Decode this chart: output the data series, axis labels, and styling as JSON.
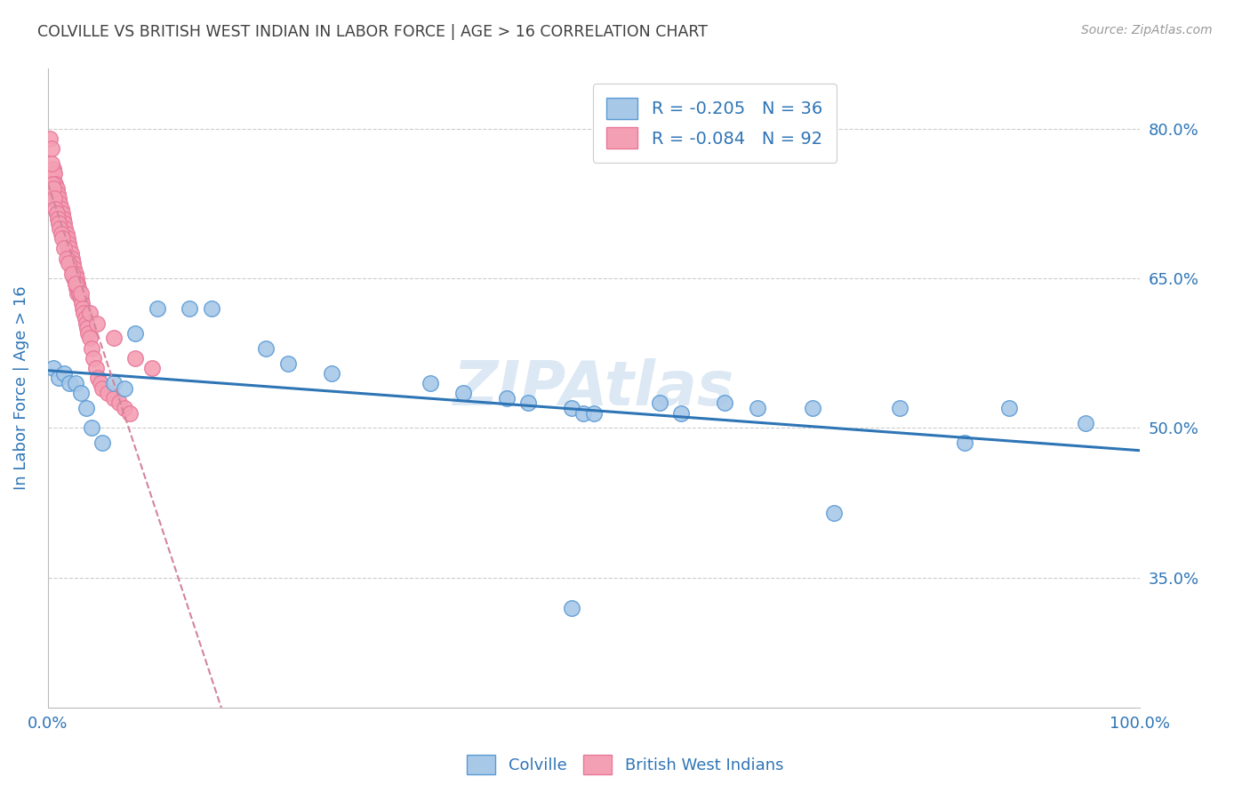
{
  "title": "COLVILLE VS BRITISH WEST INDIAN IN LABOR FORCE | AGE > 16 CORRELATION CHART",
  "source": "Source: ZipAtlas.com",
  "ylabel": "In Labor Force | Age > 16",
  "xlim": [
    0.0,
    1.0
  ],
  "ylim": [
    0.22,
    0.86
  ],
  "yticks": [
    0.35,
    0.5,
    0.65,
    0.8
  ],
  "ytick_labels": [
    "35.0%",
    "50.0%",
    "65.0%",
    "80.0%"
  ],
  "xticks": [
    0.0,
    0.1,
    0.2,
    0.3,
    0.4,
    0.5,
    0.6,
    0.7,
    0.8,
    0.9,
    1.0
  ],
  "xtick_labels": [
    "0.0%",
    "",
    "",
    "",
    "",
    "",
    "",
    "",
    "",
    "",
    "100.0%"
  ],
  "colville_color": "#a8c8e8",
  "bwi_color": "#f4a0b4",
  "colville_edge_color": "#5b9bd5",
  "bwi_edge_color": "#e8789a",
  "colville_line_color": "#2e75b6",
  "bwi_line_color": "#d4849a",
  "R_colville": -0.205,
  "N_colville": 36,
  "R_bwi": -0.084,
  "N_bwi": 92,
  "colville_x": [
    0.005,
    0.01,
    0.015,
    0.02,
    0.025,
    0.03,
    0.035,
    0.04,
    0.05,
    0.06,
    0.07,
    0.08,
    0.1,
    0.13,
    0.15,
    0.2,
    0.22,
    0.26,
    0.35,
    0.38,
    0.42,
    0.44,
    0.48,
    0.49,
    0.56,
    0.58,
    0.62,
    0.65,
    0.7,
    0.72,
    0.78,
    0.84,
    0.88,
    0.95,
    0.48,
    0.5
  ],
  "colville_y": [
    0.56,
    0.55,
    0.555,
    0.545,
    0.545,
    0.535,
    0.52,
    0.5,
    0.485,
    0.545,
    0.54,
    0.595,
    0.62,
    0.62,
    0.62,
    0.58,
    0.565,
    0.555,
    0.545,
    0.535,
    0.53,
    0.525,
    0.52,
    0.515,
    0.525,
    0.515,
    0.525,
    0.52,
    0.52,
    0.415,
    0.52,
    0.485,
    0.52,
    0.505,
    0.32,
    0.515
  ],
  "bwi_x": [
    0.002,
    0.003,
    0.004,
    0.004,
    0.005,
    0.005,
    0.006,
    0.006,
    0.007,
    0.007,
    0.008,
    0.008,
    0.009,
    0.009,
    0.01,
    0.01,
    0.011,
    0.011,
    0.012,
    0.012,
    0.013,
    0.013,
    0.014,
    0.014,
    0.015,
    0.015,
    0.016,
    0.016,
    0.017,
    0.017,
    0.018,
    0.018,
    0.019,
    0.019,
    0.02,
    0.02,
    0.021,
    0.021,
    0.022,
    0.022,
    0.023,
    0.023,
    0.024,
    0.024,
    0.025,
    0.025,
    0.026,
    0.026,
    0.027,
    0.027,
    0.028,
    0.029,
    0.03,
    0.031,
    0.032,
    0.033,
    0.034,
    0.035,
    0.036,
    0.037,
    0.038,
    0.04,
    0.042,
    0.044,
    0.046,
    0.048,
    0.05,
    0.055,
    0.06,
    0.065,
    0.07,
    0.075,
    0.003,
    0.004,
    0.005,
    0.006,
    0.007,
    0.008,
    0.009,
    0.01,
    0.011,
    0.012,
    0.013,
    0.015,
    0.017,
    0.019,
    0.022,
    0.025,
    0.03,
    0.038,
    0.045,
    0.06,
    0.08,
    0.095
  ],
  "bwi_y": [
    0.79,
    0.78,
    0.76,
    0.755,
    0.76,
    0.75,
    0.755,
    0.745,
    0.745,
    0.735,
    0.74,
    0.73,
    0.735,
    0.725,
    0.73,
    0.72,
    0.725,
    0.715,
    0.72,
    0.71,
    0.715,
    0.705,
    0.71,
    0.7,
    0.705,
    0.695,
    0.7,
    0.69,
    0.695,
    0.685,
    0.69,
    0.68,
    0.685,
    0.675,
    0.68,
    0.67,
    0.675,
    0.665,
    0.67,
    0.66,
    0.665,
    0.655,
    0.66,
    0.65,
    0.655,
    0.645,
    0.65,
    0.64,
    0.645,
    0.635,
    0.64,
    0.635,
    0.63,
    0.625,
    0.62,
    0.615,
    0.61,
    0.605,
    0.6,
    0.595,
    0.59,
    0.58,
    0.57,
    0.56,
    0.55,
    0.545,
    0.54,
    0.535,
    0.53,
    0.525,
    0.52,
    0.515,
    0.765,
    0.745,
    0.74,
    0.73,
    0.72,
    0.715,
    0.71,
    0.705,
    0.7,
    0.695,
    0.69,
    0.68,
    0.67,
    0.665,
    0.655,
    0.645,
    0.635,
    0.615,
    0.605,
    0.59,
    0.57,
    0.56
  ],
  "background_color": "#ffffff",
  "grid_color": "#cccccc",
  "title_color": "#404040",
  "axis_label_color": "#2e75b6",
  "tick_color": "#2e75b6",
  "watermark": "ZIPAtlas",
  "watermark_color": "#dce8f4"
}
